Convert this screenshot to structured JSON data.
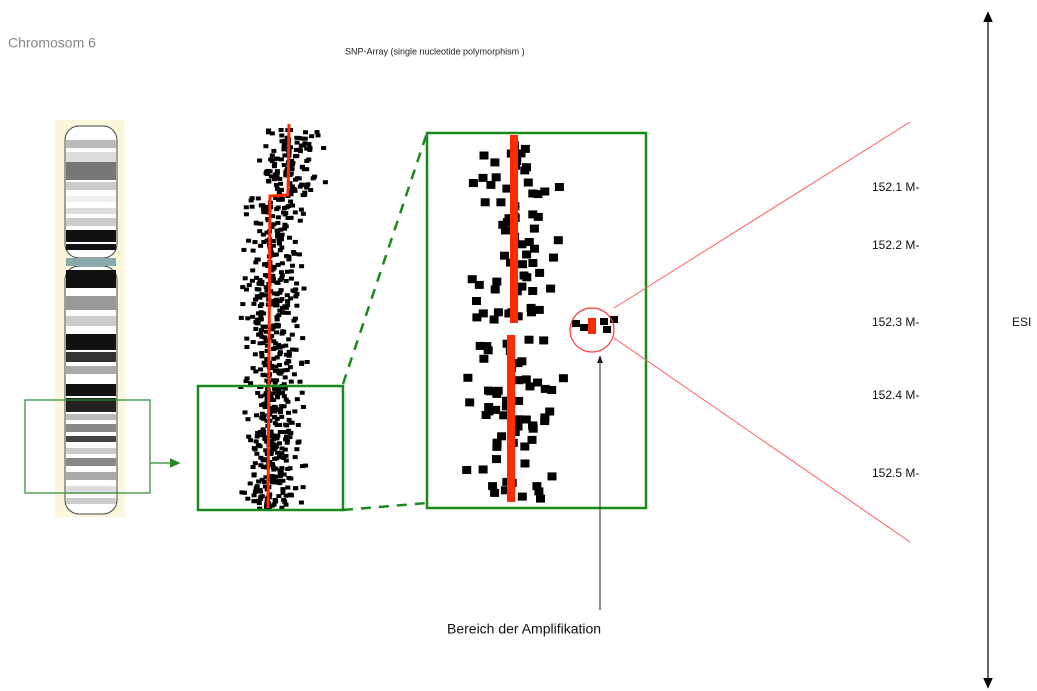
{
  "header": {
    "title": "Chromosom 6",
    "subtitle": "SNP-Array (single nucleotide polymorphism   )"
  },
  "positions": [
    "152.1 M-",
    "152.2 M-",
    "152.3 M-",
    "152.4 M-",
    "152.5 M-"
  ],
  "side_label": "ESI",
  "annotation": "Bereich der Amplifikation"
}
